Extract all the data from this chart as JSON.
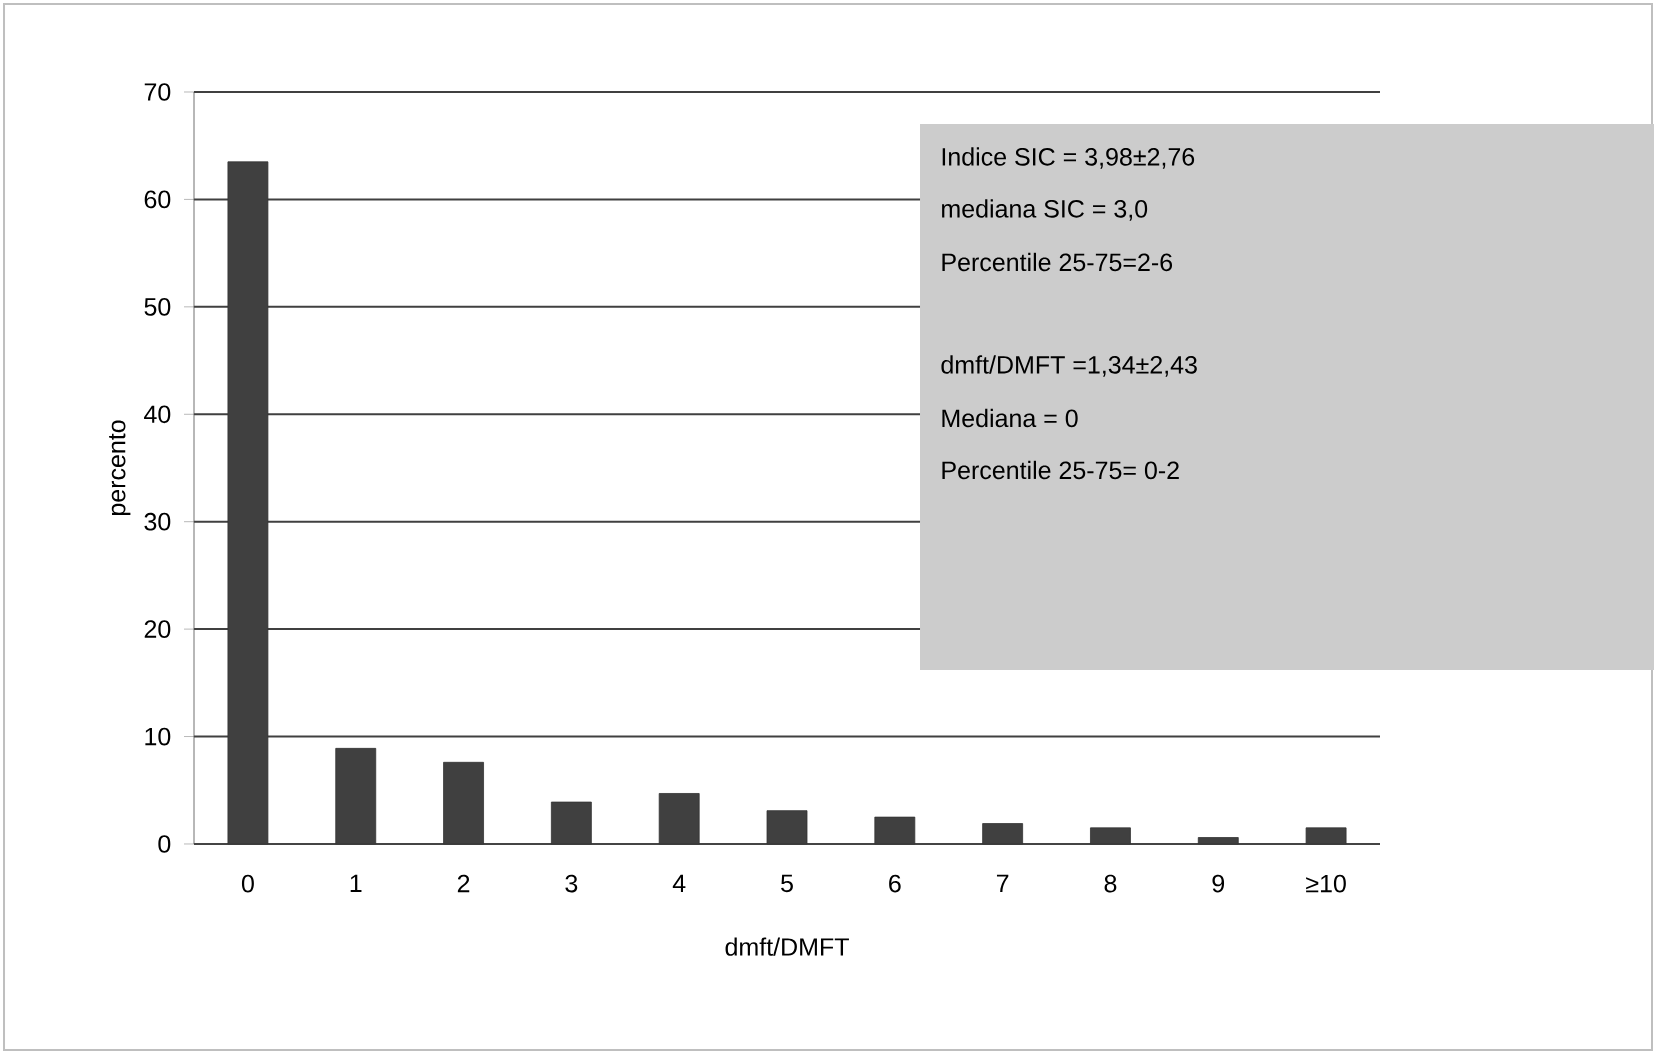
{
  "chart_data": {
    "type": "bar",
    "xlabel": "dmft/DMFT",
    "ylabel": "percento",
    "categories": [
      "0",
      "1",
      "2",
      "3",
      "4",
      "5",
      "6",
      "7",
      "8",
      "9",
      "≥10"
    ],
    "values": [
      63.5,
      8.9,
      7.6,
      3.9,
      4.7,
      3.1,
      2.5,
      1.9,
      1.5,
      0.6,
      1.5
    ],
    "color": "#404040",
    "ylim": [
      0,
      70
    ],
    "yticks": [
      0,
      10,
      20,
      30,
      40,
      50,
      60,
      70
    ],
    "grid": "y",
    "annotations": [
      "Indice SIC       = 3,98±2,76",
      "mediana SIC     = 3,0",
      "Percentile 25-75=2-6",
      "dmft/DMFT       =1,34±2,43",
      "Mediana              = 0",
      "Percentile 25-75=  0-2"
    ]
  }
}
